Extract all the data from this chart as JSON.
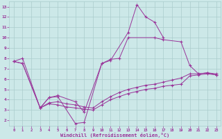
{
  "xlabel": "Windchill (Refroidissement éolien,°C)",
  "background_color": "#cce8e8",
  "line_color": "#993399",
  "grid_color": "#aacccc",
  "xlim": [
    -0.5,
    23.5
  ],
  "ylim": [
    1.5,
    13.5
  ],
  "xticks": [
    0,
    1,
    2,
    3,
    4,
    5,
    6,
    7,
    8,
    9,
    10,
    11,
    12,
    13,
    14,
    15,
    16,
    17,
    18,
    19,
    20,
    21,
    22,
    23
  ],
  "yticks": [
    2,
    3,
    4,
    5,
    6,
    7,
    8,
    9,
    10,
    11,
    12,
    13
  ],
  "series1": {
    "x": [
      0,
      1,
      3,
      4,
      5,
      7,
      8,
      10,
      11,
      13,
      14,
      15,
      16,
      17
    ],
    "y": [
      7.7,
      8.0,
      3.2,
      4.2,
      4.3,
      1.7,
      1.8,
      7.5,
      7.8,
      10.5,
      13.2,
      12.0,
      11.5,
      10.0
    ]
  },
  "series2": {
    "x": [
      3,
      4,
      5,
      7,
      8,
      10,
      11,
      12,
      13,
      16,
      17,
      19,
      20,
      21,
      22,
      23
    ],
    "y": [
      3.2,
      4.2,
      4.4,
      3.8,
      2.8,
      7.5,
      7.9,
      8.0,
      10.0,
      10.0,
      9.8,
      9.6,
      7.3,
      6.5,
      6.6,
      6.4
    ]
  },
  "series3": {
    "x": [
      0,
      1,
      3,
      4,
      5,
      6,
      7,
      8,
      9,
      10,
      11,
      12,
      13,
      14,
      15,
      16,
      17,
      18,
      19,
      20,
      21,
      22,
      23
    ],
    "y": [
      7.7,
      7.5,
      3.2,
      3.6,
      3.5,
      3.3,
      3.2,
      3.1,
      3.0,
      3.5,
      4.0,
      4.3,
      4.6,
      4.8,
      5.0,
      5.1,
      5.3,
      5.4,
      5.5,
      6.3,
      6.4,
      6.5,
      6.4
    ]
  },
  "series4": {
    "x": [
      0,
      1,
      3,
      4,
      5,
      6,
      7,
      8,
      9,
      10,
      11,
      12,
      13,
      14,
      15,
      16,
      17,
      18,
      19,
      20,
      21,
      22,
      23
    ],
    "y": [
      7.7,
      7.5,
      3.2,
      3.7,
      3.8,
      3.6,
      3.5,
      3.3,
      3.2,
      3.8,
      4.3,
      4.7,
      5.0,
      5.2,
      5.4,
      5.5,
      5.7,
      5.9,
      6.1,
      6.5,
      6.5,
      6.6,
      6.5
    ]
  }
}
